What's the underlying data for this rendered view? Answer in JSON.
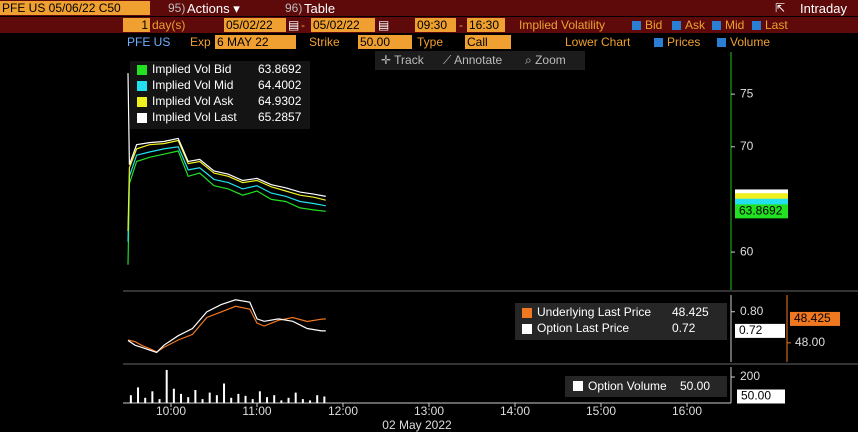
{
  "toolbar": {
    "security": "PFE US 05/06/22 C50",
    "actions_num": "95)",
    "actions": "Actions ▾",
    "table_num": "96)",
    "table": "Table",
    "intraday": "Intraday"
  },
  "settings": {
    "period": "1",
    "period_unit": "day(s)",
    "start_date": "05/02/22",
    "range_dash": "-",
    "end_date": "05/02/22",
    "start_time": "09:30",
    "time_dash": "-",
    "end_time": "16:30",
    "mode": "Implied Volatility",
    "checks": [
      "Bid",
      "Ask",
      "Mid",
      "Last"
    ],
    "ticker": "PFE US",
    "exp_label": "Exp",
    "exp": "6 MAY 22",
    "strike_label": "Strike",
    "strike": "50.00",
    "type_label": "Type",
    "type": "Call",
    "lower_label": "Lower Chart",
    "lower_checks": [
      "Prices",
      "Volume"
    ]
  },
  "tools": [
    "Track",
    "Annotate",
    "Zoom"
  ],
  "chart_data": [
    {
      "type": "line",
      "xlim": [
        "09:30",
        "16:30"
      ],
      "ylim": [
        56.4,
        79
      ],
      "yticks": [
        60,
        70,
        75
      ],
      "x": [
        "09:30",
        "09:31",
        "09:36",
        "09:45",
        "09:55",
        "10:05",
        "10:12",
        "10:20",
        "10:30",
        "10:40",
        "10:50",
        "11:00",
        "11:10",
        "11:20",
        "11:30",
        "11:40",
        "11:48"
      ],
      "series": [
        {
          "name": "Implied Vol Bid",
          "color": "#22e022",
          "values": [
            58.8,
            66.5,
            68.6,
            69.0,
            69.3,
            69.6,
            67.2,
            67.5,
            66.3,
            66.0,
            65.4,
            65.8,
            65.0,
            64.8,
            64.2,
            64.0,
            63.8692
          ]
        },
        {
          "name": "Implied Vol Mid",
          "color": "#22e0f0",
          "values": [
            61,
            67.2,
            69.2,
            69.5,
            69.8,
            70.0,
            67.8,
            68.0,
            66.9,
            66.6,
            66.0,
            66.3,
            65.6,
            65.3,
            64.8,
            64.6,
            64.4002
          ]
        },
        {
          "name": "Implied Vol Ask",
          "color": "#f0f020",
          "values": [
            62,
            68,
            69.8,
            70.2,
            70.3,
            70.6,
            68.4,
            68.6,
            67.5,
            67.2,
            66.6,
            66.8,
            66.2,
            65.8,
            65.4,
            65.2,
            64.9302
          ]
        },
        {
          "name": "Implied Vol Last",
          "color": "#ffffff",
          "values": [
            77.0,
            68.3,
            70.2,
            70.4,
            70.5,
            70.8,
            68.6,
            68.8,
            67.7,
            67.4,
            66.8,
            67.0,
            66.4,
            66.1,
            65.7,
            65.5,
            65.2857
          ]
        }
      ]
    },
    {
      "type": "line",
      "xlim": [
        "09:30",
        "16:30"
      ],
      "ylim": [
        0.59,
        0.87
      ],
      "yticks": [
        {
          "value": 0.8,
          "label": "0.80"
        }
      ],
      "y2lim": [
        47.66,
        48.85
      ],
      "y2ticks": [
        {
          "value": 48,
          "label": "48.00"
        }
      ],
      "x": [
        "09:30",
        "09:35",
        "09:40",
        "09:45",
        "09:50",
        "09:55",
        "10:05",
        "10:15",
        "10:25",
        "10:35",
        "10:45",
        "10:55",
        "11:00",
        "11:05",
        "11:15",
        "11:25",
        "11:35",
        "11:45",
        "11:48"
      ],
      "series": [
        {
          "name": "Underlying Last Price",
          "color": "#f07820",
          "axis": "y2",
          "values": [
            48.05,
            48.02,
            47.95,
            47.9,
            47.84,
            47.92,
            48.05,
            48.15,
            48.45,
            48.55,
            48.65,
            48.6,
            48.35,
            48.3,
            48.4,
            48.45,
            48.38,
            48.42,
            48.425
          ]
        },
        {
          "name": "Option Last Price",
          "color": "#ffffff",
          "values": [
            0.68,
            0.66,
            0.65,
            0.64,
            0.63,
            0.66,
            0.7,
            0.73,
            0.8,
            0.83,
            0.85,
            0.84,
            0.77,
            0.76,
            0.77,
            0.76,
            0.73,
            0.72,
            0.72
          ]
        }
      ]
    },
    {
      "type": "bar",
      "xlim": [
        "09:30",
        "16:30"
      ],
      "ylim": [
        0,
        277
      ],
      "yticks": [
        200
      ],
      "xticks": [
        "10:00",
        "11:00",
        "12:00",
        "13:00",
        "14:00",
        "15:00",
        "16:00"
      ],
      "xlabel": "02 May 2022",
      "x": [
        "09:32",
        "09:37",
        "09:42",
        "09:47",
        "09:52",
        "09:57",
        "10:02",
        "10:07",
        "10:12",
        "10:17",
        "10:22",
        "10:27",
        "10:32",
        "10:37",
        "10:42",
        "10:47",
        "10:52",
        "10:57",
        "11:02",
        "11:07",
        "11:12",
        "11:17",
        "11:22",
        "11:27",
        "11:32",
        "11:37",
        "11:42",
        "11:47"
      ],
      "series": [
        {
          "name": "Option Volume",
          "color": "#ffffff",
          "values": [
            60,
            120,
            40,
            90,
            30,
            254,
            110,
            70,
            45,
            100,
            30,
            80,
            60,
            150,
            40,
            70,
            55,
            30,
            90,
            45,
            60,
            20,
            40,
            80,
            30,
            20,
            60,
            50
          ],
          "value_labels": [
            null,
            null,
            null,
            null,
            null,
            null,
            null,
            null,
            null,
            null,
            null,
            null,
            null,
            null,
            null,
            null,
            null,
            null,
            null,
            null,
            null,
            null,
            null,
            null,
            null,
            null,
            null,
            "50.00"
          ]
        }
      ]
    }
  ]
}
